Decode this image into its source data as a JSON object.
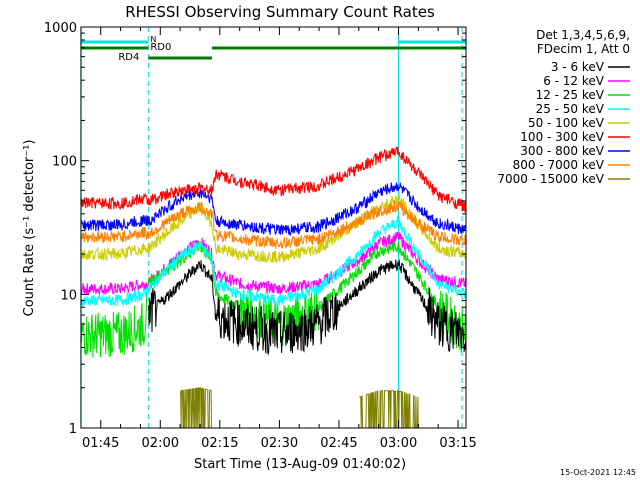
{
  "chart_data": {
    "type": "line",
    "title": "RHESSI Observing Summary Count Rates",
    "xlabel": "Start Time (13-Aug-09 01:40:02)",
    "ylabel": "Count Rate (s⁻¹ detector⁻¹)",
    "yscale": "log",
    "ylim": [
      1,
      1000
    ],
    "xlim": [
      "01:40:02",
      "03:17:00"
    ],
    "x_ticks": [
      "01:45",
      "02:00",
      "02:15",
      "02:30",
      "02:45",
      "03:00",
      "03:15"
    ],
    "y_ticks": [
      "1",
      "10",
      "100",
      "1000"
    ],
    "grid": false,
    "legend_position": "right",
    "legend_header": [
      "Det 1,3,4,5,6,9,",
      "FDecim 1, Att 0"
    ],
    "timestamp": "15-Oct-2021 12:45",
    "flags": [
      {
        "label": "N",
        "color": "#00e0e0",
        "segments": [
          [
            "01:40",
            "01:57"
          ],
          [
            "03:00",
            "03:17"
          ]
        ]
      },
      {
        "label": "RD0",
        "color": "#007a00",
        "segments": [
          [
            "01:40",
            "01:57"
          ],
          [
            "02:13",
            "03:17"
          ]
        ]
      },
      {
        "label": "RD4",
        "color": "#007a00",
        "segments": [
          [
            "01:57",
            "02:13"
          ]
        ]
      }
    ],
    "vertical_lines": [
      {
        "time": "01:40",
        "style": "solid",
        "color": "#00e0e0"
      },
      {
        "time": "01:57",
        "style": "dashed",
        "color": "#00e0e0"
      },
      {
        "time": "03:00",
        "style": "solid",
        "color": "#00e0e0"
      },
      {
        "time": "03:16",
        "style": "dashed",
        "color": "#00e0e0"
      }
    ],
    "x": [
      "01:40",
      "01:50",
      "01:56",
      "01:57",
      "02:05",
      "02:10",
      "02:13",
      "02:14",
      "02:20",
      "02:30",
      "02:40",
      "02:50",
      "02:55",
      "03:00",
      "03:05",
      "03:10",
      "03:17"
    ],
    "series": [
      {
        "name": "3 - 6 keV",
        "color": "#000000",
        "values": [
          null,
          null,
          null,
          7,
          12,
          17,
          13,
          7,
          6,
          5,
          6,
          11,
          15,
          17,
          10,
          6,
          5
        ]
      },
      {
        "name": "6 - 12 keV",
        "color": "#ff00ff",
        "values": [
          11,
          11,
          12,
          12,
          20,
          25,
          20,
          14,
          12,
          11,
          12,
          18,
          24,
          27,
          18,
          13,
          12
        ]
      },
      {
        "name": "12 - 25 keV",
        "color": "#00e000",
        "values": [
          5,
          5,
          6,
          12,
          18,
          23,
          18,
          10,
          8,
          6,
          8,
          15,
          21,
          23,
          14,
          8,
          5
        ]
      },
      {
        "name": "25 - 50 keV",
        "color": "#00ffff",
        "values": [
          9,
          9,
          10,
          11,
          19,
          24,
          18,
          12,
          10,
          9,
          11,
          20,
          29,
          35,
          20,
          12,
          10
        ]
      },
      {
        "name": "50 - 100 keV",
        "color": "#cccc00",
        "values": [
          20,
          20,
          22,
          22,
          35,
          45,
          34,
          22,
          20,
          19,
          22,
          35,
          45,
          52,
          33,
          22,
          20
        ]
      },
      {
        "name": "100 - 300 keV",
        "color": "#ff0000",
        "values": [
          48,
          48,
          52,
          50,
          60,
          62,
          60,
          80,
          70,
          60,
          65,
          88,
          105,
          118,
          80,
          55,
          45
        ]
      },
      {
        "name": "300 - 800 keV",
        "color": "#0000ff",
        "values": [
          33,
          33,
          36,
          35,
          52,
          58,
          52,
          35,
          33,
          30,
          32,
          45,
          58,
          65,
          45,
          34,
          30
        ]
      },
      {
        "name": "800 - 7000 keV",
        "color": "#ff8000",
        "values": [
          27,
          27,
          29,
          28,
          40,
          45,
          40,
          28,
          26,
          24,
          26,
          35,
          42,
          46,
          34,
          27,
          25
        ]
      },
      {
        "name": "7000 - 15000 keV",
        "color": "#808000",
        "values": [
          null,
          null,
          null,
          null,
          1.9,
          2.0,
          1.9,
          null,
          null,
          null,
          null,
          1.7,
          1.9,
          1.9,
          1.7,
          null,
          null
        ]
      }
    ]
  }
}
